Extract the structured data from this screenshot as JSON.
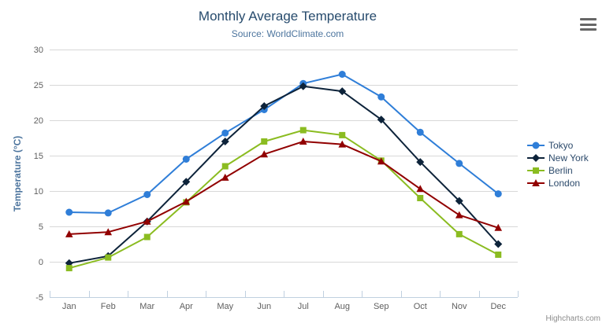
{
  "header": {
    "title": "Monthly Average Temperature",
    "subtitle": "Source: WorldClimate.com"
  },
  "credits_label": "Highcharts.com",
  "export_menu": {
    "icon": "hamburger-icon"
  },
  "colors": {
    "title": "#274b6d",
    "subtitle": "#4d759e",
    "grid_line": "#d8d8d8",
    "axis_line": "#c0d0e0",
    "tick_mark": "#c0d0e0",
    "axis_label": "#606060",
    "y_axis_title": "#4d759e",
    "legend_text": "#2c4a6b",
    "credits_text": "#8c8c8c",
    "menu_icon": "#666666",
    "background": "#ffffff"
  },
  "chart_data": {
    "type": "line",
    "title": "Monthly Average Temperature",
    "subtitle": "Source: WorldClimate.com",
    "xlabel": "",
    "ylabel": "Temperature (°C)",
    "categories": [
      "Jan",
      "Feb",
      "Mar",
      "Apr",
      "May",
      "Jun",
      "Jul",
      "Aug",
      "Sep",
      "Oct",
      "Nov",
      "Dec"
    ],
    "ylim": [
      -5,
      30
    ],
    "yticks": [
      -5,
      0,
      5,
      10,
      15,
      20,
      25,
      30
    ],
    "grid": true,
    "legend_position": "right",
    "series": [
      {
        "name": "Tokyo",
        "color": "#2f7ed8",
        "marker": "circle",
        "values": [
          7.0,
          6.9,
          9.5,
          14.5,
          18.2,
          21.5,
          25.2,
          26.5,
          23.3,
          18.3,
          13.9,
          9.6
        ]
      },
      {
        "name": "New York",
        "color": "#0d233a",
        "marker": "diamond",
        "values": [
          -0.2,
          0.8,
          5.7,
          11.3,
          17.0,
          22.0,
          24.8,
          24.1,
          20.1,
          14.1,
          8.6,
          2.5
        ]
      },
      {
        "name": "Berlin",
        "color": "#8bbc21",
        "marker": "square",
        "values": [
          -0.9,
          0.6,
          3.5,
          8.4,
          13.5,
          17.0,
          18.6,
          17.9,
          14.3,
          9.0,
          3.9,
          1.0
        ]
      },
      {
        "name": "London",
        "color": "#910000",
        "marker": "triangle",
        "values": [
          3.9,
          4.2,
          5.7,
          8.5,
          11.9,
          15.2,
          17.0,
          16.6,
          14.2,
          10.3,
          6.6,
          4.8
        ]
      }
    ]
  }
}
